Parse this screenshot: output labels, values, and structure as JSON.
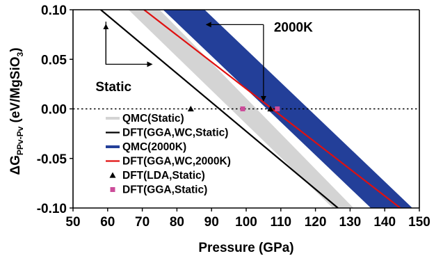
{
  "chart_data": {
    "type": "line",
    "title": "",
    "xlabel": "Pressure (GPa)",
    "ylabel": {
      "prefix": "ΔG",
      "sub": "PPv-Pv",
      "mid": " (eV/MgSiO",
      "sub2": "3",
      "suffix": ")"
    },
    "xlim": [
      50,
      150
    ],
    "ylim": [
      -0.1,
      0.1
    ],
    "xticks": [
      50,
      60,
      70,
      80,
      90,
      100,
      110,
      120,
      130,
      140,
      150
    ],
    "yticks": [
      -0.1,
      -0.05,
      0,
      0.05,
      0.1
    ],
    "xtick_labels": [
      "50",
      "60",
      "70",
      "80",
      "90",
      "100",
      "110",
      "120",
      "130",
      "140",
      "150"
    ],
    "ytick_labels": [
      "-0.10",
      "-0.05",
      "0.00",
      "0.05",
      "0.10"
    ],
    "grid": false,
    "legend_position": "lower-left",
    "zero_line": {
      "y": 0,
      "style": "dotted"
    },
    "series": [
      {
        "name": "QMC(Static)",
        "kind": "band",
        "color": "#d4d4d4",
        "lower": [
          [
            66,
            0.1
          ],
          [
            125,
            -0.1
          ]
        ],
        "upper": [
          [
            75,
            0.1
          ],
          [
            131,
            -0.1
          ]
        ]
      },
      {
        "name": "DFT(GGA,WC,Static)",
        "kind": "line",
        "color": "#000000",
        "points": [
          [
            58,
            0.1
          ],
          [
            126.5,
            -0.1
          ]
        ]
      },
      {
        "name": "QMC(2000K)",
        "kind": "band",
        "color": "#233f99",
        "lower": [
          [
            76,
            0.1
          ],
          [
            136,
            -0.1
          ]
        ],
        "upper": [
          [
            88,
            0.1
          ],
          [
            148,
            -0.1
          ]
        ]
      },
      {
        "name": "DFT(GGA,WC,2000K)",
        "kind": "line",
        "color": "#e01010",
        "points": [
          [
            70.5,
            0.1
          ],
          [
            144.5,
            -0.1
          ]
        ]
      },
      {
        "name": "DFT(LDA,Static)",
        "kind": "marker",
        "marker": "triangle",
        "color": "#000000",
        "points": [
          [
            84,
            0
          ],
          [
            107,
            0
          ]
        ]
      },
      {
        "name": "DFT(GGA,Static)",
        "kind": "marker",
        "marker": "square",
        "color": "#cc4c9a",
        "points": [
          [
            99,
            0
          ],
          [
            109,
            0
          ]
        ]
      }
    ],
    "annotations": [
      {
        "text": "Static",
        "anchor": [
          56.5,
          0.018
        ],
        "arrow_from": [
          63.5,
          0.045
        ],
        "arrow_to": [
          59.5,
          0.088
        ],
        "arrow_to_b": [
          74,
          0.045
        ]
      },
      {
        "text": "2000K",
        "anchor": [
          108,
          0.078
        ],
        "arrow_from": [
          105,
          0.085
        ],
        "arrow_to": [
          87.5,
          0.085
        ],
        "arrow_to_b": [
          105,
          0.006
        ]
      }
    ]
  }
}
